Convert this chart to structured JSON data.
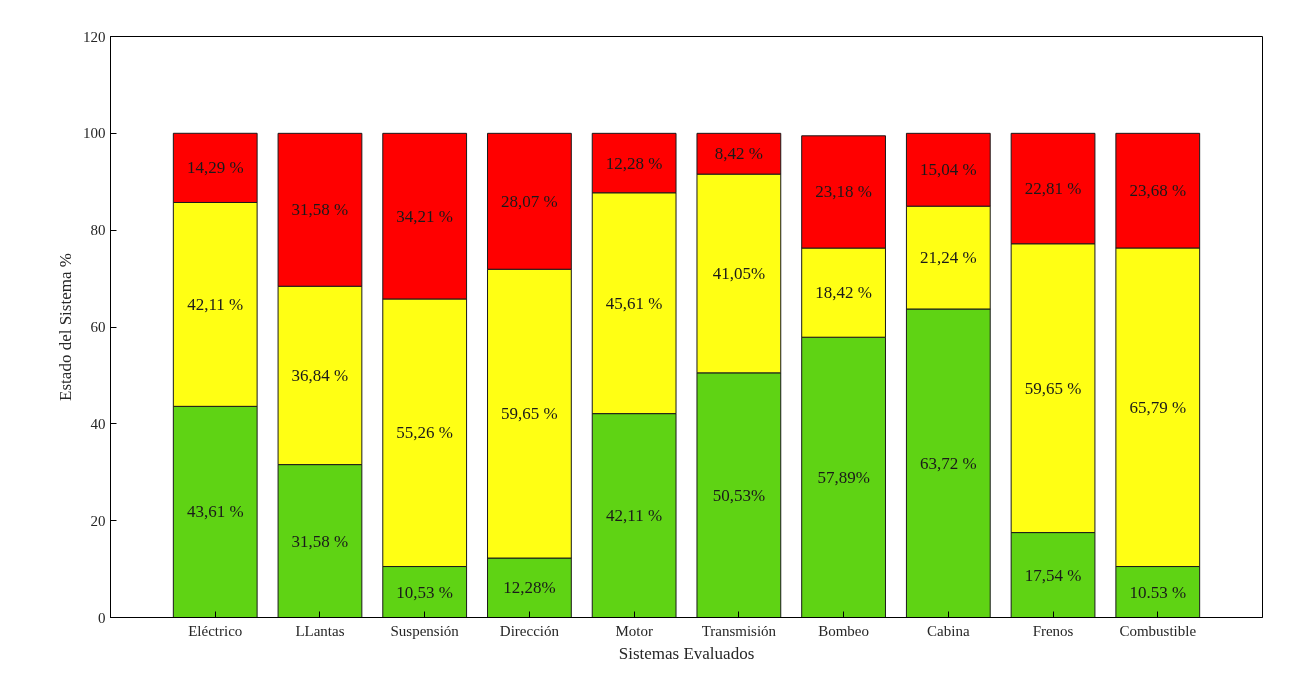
{
  "chart_data": {
    "type": "bar",
    "stacked": true,
    "xlabel": "Sistemas Evaluados",
    "ylabel": "Estado del Sistema %",
    "categories": [
      "Eléctrico",
      "LLantas",
      "Suspensión",
      "Dirección",
      "Motor",
      "Transmisión",
      "Bombeo",
      "Cabina",
      "Frenos",
      "Combustible"
    ],
    "ylim": [
      0,
      120
    ],
    "yticks": [
      0,
      20,
      40,
      60,
      80,
      100,
      120
    ],
    "grid": false,
    "series": [
      {
        "color": "#5fd314",
        "values": [
          43.61,
          31.58,
          10.53,
          12.28,
          42.11,
          50.53,
          57.89,
          63.72,
          17.54,
          10.53
        ],
        "value_labels": [
          "43,61 %",
          "31,58 %",
          "10,53 %",
          "12,28%",
          "42,11 %",
          "50,53%",
          "57,89%",
          "63,72 %",
          "17,54 %",
          "10.53 %"
        ]
      },
      {
        "color": "#ffff14",
        "values": [
          42.11,
          36.84,
          55.26,
          59.65,
          45.61,
          41.05,
          18.42,
          21.24,
          59.65,
          65.79
        ],
        "value_labels": [
          "42,11 %",
          "36,84 %",
          "55,26 %",
          "59,65 %",
          "45,61 %",
          "41,05%",
          "18,42 %",
          "21,24 %",
          "59,65 %",
          "65,79 %"
        ]
      },
      {
        "color": "#ff0000",
        "values": [
          14.29,
          31.58,
          34.21,
          28.07,
          12.28,
          8.42,
          23.18,
          15.04,
          22.81,
          23.68
        ],
        "value_labels": [
          "14,29 %",
          "31,58 %",
          "34,21 %",
          "28,07 %",
          "12,28 %",
          "8,42 %",
          "23,18 %",
          "15,04 %",
          "22,81 %",
          "23,68 %"
        ]
      }
    ]
  }
}
